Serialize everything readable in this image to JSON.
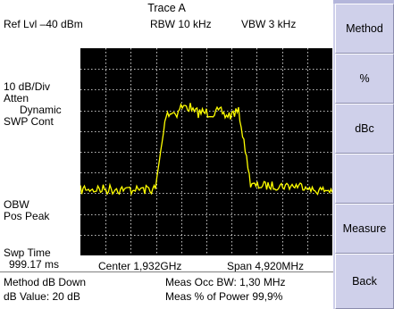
{
  "header": {
    "title": "Trace A",
    "ref_lvl": "Ref Lvl –40 dBm",
    "rbw": "RBW 10 kHz",
    "vbw": "VBW 3 kHz"
  },
  "left_labels": {
    "scale": "10 dB/Div",
    "atten": "Atten",
    "atten_mode": "Dynamic",
    "sweep_mode": "SWP Cont",
    "measure": "OBW",
    "detector": "Pos Peak",
    "swp_time_label": "Swp Time",
    "swp_time_value": "999.17 ms"
  },
  "axis": {
    "center": "Center  1,932GHz",
    "span": "Span  4,920MHz"
  },
  "status": {
    "method": "Method dB Down",
    "db_value": "dB Value: 20 dB",
    "occ_bw": "Meas Occ BW: 1,30 MHz",
    "pct_power": "Meas % of Power 99,9%"
  },
  "softkeys": [
    "Method",
    "%",
    "dBc",
    "",
    "Measure",
    "Back"
  ],
  "colors": {
    "trace": "#ffff00",
    "grid": "#ffffff",
    "plot_bg": "#000000",
    "panel_bg": "#cfd0ea"
  }
}
